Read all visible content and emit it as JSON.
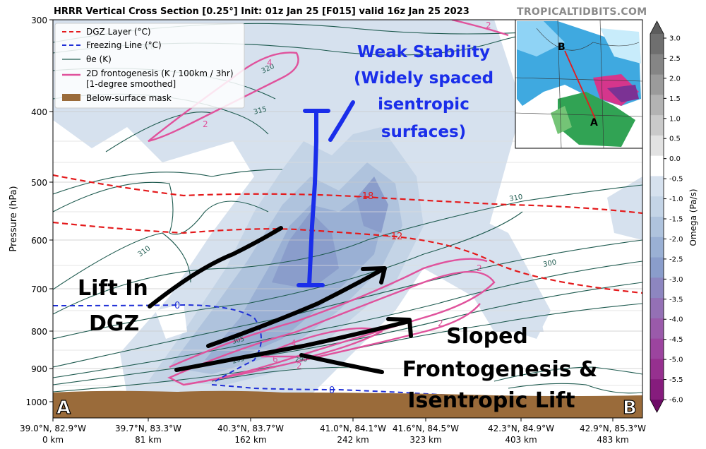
{
  "header": {
    "title": "HRRR Vertical Cross Section [0.25°] Init: 01z Jan 25 [F015] valid 16z Jan 25 2023",
    "brand": "TROPICALTIDBITS.COM"
  },
  "legend": {
    "items": [
      {
        "label": "DGZ Layer (°C)",
        "color": "#e41a1c",
        "style": "dashed"
      },
      {
        "label": "Freezing Line (°C)",
        "color": "#1f2fd6",
        "style": "dashed"
      },
      {
        "label": "θe (K)",
        "color": "#1f5b50",
        "style": "solid"
      },
      {
        "label": "2D frontogenesis (K / 100km / 3hr)",
        "label2": "[1-degree smoothed]",
        "color": "#e0529c",
        "style": "solid"
      },
      {
        "label": "Below-surface mask",
        "color": "#9a6b3a",
        "style": "patch"
      }
    ]
  },
  "chart_data": {
    "type": "cross-section",
    "ylabel": "Pressure (hPa)",
    "y_ticks": [
      300,
      400,
      500,
      600,
      700,
      800,
      900,
      1000
    ],
    "y_scale": "log (inverted)",
    "x_ticks": [
      {
        "lat": "39.0°N, 82.9°W",
        "dist": "0 km"
      },
      {
        "lat": "39.7°N, 83.3°W",
        "dist": "81 km"
      },
      {
        "lat": "40.3°N, 83.7°W",
        "dist": "162 km"
      },
      {
        "lat": "41.0°N, 84.1°W",
        "dist": "242 km"
      },
      {
        "lat": "41.6°N, 84.5°W",
        "dist": "323 km"
      },
      {
        "lat": "42.3°N, 84.9°W",
        "dist": "403 km"
      },
      {
        "lat": "42.9°N, 85.3°W",
        "dist": "483 km"
      }
    ],
    "endpoints": {
      "left": "A",
      "right": "B"
    },
    "contour_labels": {
      "theta_e": [
        "310",
        "315",
        "320",
        "326",
        "310",
        "300",
        "305",
        "295",
        "290"
      ],
      "dgz": [
        "-18",
        "-12"
      ],
      "freezing": [
        "0",
        "0"
      ],
      "frontogenesis": [
        "2",
        "2",
        "4",
        "2",
        "2",
        "4",
        "6",
        "2"
      ]
    },
    "colorbar": {
      "label": "Omega (Pa/s)",
      "ticks": [
        "3.0",
        "2.5",
        "2.0",
        "1.5",
        "1.0",
        "0.5",
        "0.0",
        "-0.5",
        "-1.0",
        "-1.5",
        "-2.0",
        "-2.5",
        "-3.0",
        "-3.5",
        "-4.0",
        "-4.5",
        "-5.0",
        "-5.5",
        "-6.0"
      ],
      "colors": [
        "#6f6f6f",
        "#858585",
        "#9b9b9b",
        "#b3b3b3",
        "#cacaca",
        "#e2e2e2",
        "#ffffff",
        "#d6e1ee",
        "#c4d4e6",
        "#afc3dd",
        "#9ab0d4",
        "#8a9dcb",
        "#8d86c0",
        "#9470b5",
        "#9a5aaa",
        "#9c449f",
        "#96308f",
        "#861c7d",
        "#6d0c66"
      ]
    }
  },
  "annotations": {
    "weak_stability": [
      "Weak Stability",
      "(Widely spaced",
      "isentropic",
      "surfaces)"
    ],
    "lift_dgz": [
      "Lift In",
      "DGZ"
    ],
    "sloped": [
      "Sloped",
      "Frontogenesis &",
      "Isentropic Lift"
    ]
  },
  "inset": {
    "label_b": "B",
    "label_a": "A"
  },
  "colors": {
    "omega_light": "#d6e1ee",
    "omega_mid": "#afc3dd",
    "omega_strong": "#8a9dcb",
    "ground": "#9a6b3a",
    "annot_blue": "#1a2eea"
  }
}
